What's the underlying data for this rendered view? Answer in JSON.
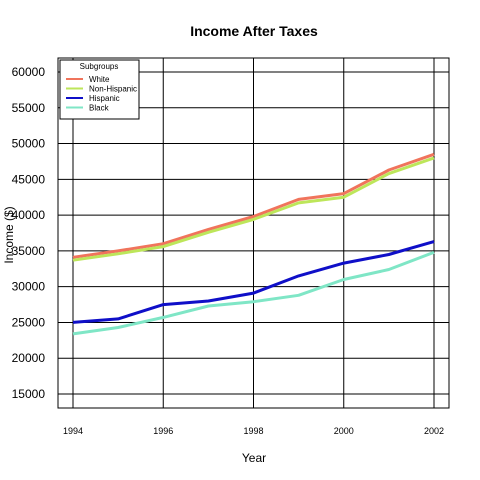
{
  "chart_data": {
    "type": "line",
    "title": "Income After Taxes",
    "xlabel": "Year",
    "ylabel": "Income ($)",
    "xlim": [
      1994,
      2002
    ],
    "ylim": [
      15000,
      60000
    ],
    "xticks": [
      1994,
      1996,
      1998,
      2000,
      2002
    ],
    "yticks": [
      15000,
      20000,
      25000,
      30000,
      35000,
      40000,
      45000,
      50000,
      55000,
      60000
    ],
    "grid": true,
    "legend_placement": "top-left",
    "legend_title": "Subgroups",
    "x": [
      1994,
      1995,
      1996,
      1997,
      1998,
      1999,
      2000,
      2001,
      2002
    ],
    "series": [
      {
        "name": "White",
        "color": "#f0745c",
        "values": [
          34100,
          35000,
          36000,
          38000,
          39800,
          42200,
          43000,
          46300,
          48500
        ]
      },
      {
        "name": "Non-Hispanic",
        "color": "#bde65a",
        "values": [
          33700,
          34600,
          35600,
          37600,
          39400,
          41700,
          42500,
          45800,
          48000
        ]
      },
      {
        "name": "Hispanic",
        "color": "#0f0fc8",
        "values": [
          25000,
          25500,
          27500,
          28000,
          29100,
          31500,
          33300,
          34500,
          36300
        ]
      },
      {
        "name": "Black",
        "color": "#7fe6c6",
        "values": [
          23400,
          24300,
          25700,
          27300,
          27900,
          28800,
          31000,
          32400,
          34800
        ]
      }
    ]
  }
}
